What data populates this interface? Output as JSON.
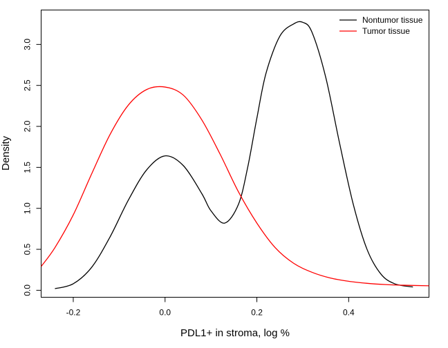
{
  "chart_data": {
    "type": "line",
    "title": "",
    "xlabel": "PDL1+ in stroma, log %",
    "ylabel": "Density",
    "xlim": [
      -0.27,
      0.575
    ],
    "ylim": [
      -0.085,
      3.42
    ],
    "x_ticks": [
      -0.2,
      0.0,
      0.2,
      0.4
    ],
    "x_tick_labels": [
      "-0.2",
      "0.0",
      "0.2",
      "0.4"
    ],
    "y_ticks": [
      0.0,
      0.5,
      1.0,
      1.5,
      2.0,
      2.5,
      3.0
    ],
    "y_tick_labels": [
      "0.0",
      "0.5",
      "1.0",
      "1.5",
      "2.0",
      "2.5",
      "3.0"
    ],
    "grid": false,
    "legend_position": "top-right",
    "series": [
      {
        "name": "Nontumor tissue",
        "color": "#000000",
        "x": [
          -0.24,
          -0.2,
          -0.16,
          -0.12,
          -0.08,
          -0.04,
          0.0,
          0.04,
          0.08,
          0.1,
          0.13,
          0.16,
          0.18,
          0.2,
          0.22,
          0.25,
          0.28,
          0.3,
          0.32,
          0.35,
          0.38,
          0.41,
          0.44,
          0.47,
          0.5,
          0.54
        ],
        "y": [
          0.02,
          0.08,
          0.28,
          0.65,
          1.1,
          1.47,
          1.64,
          1.52,
          1.18,
          0.97,
          0.82,
          1.05,
          1.5,
          2.1,
          2.65,
          3.1,
          3.25,
          3.27,
          3.15,
          2.6,
          1.8,
          1.05,
          0.5,
          0.2,
          0.08,
          0.04
        ]
      },
      {
        "name": "Tumor tissue",
        "color": "#ff0000",
        "x": [
          -0.27,
          -0.24,
          -0.2,
          -0.16,
          -0.12,
          -0.08,
          -0.04,
          0.0,
          0.04,
          0.08,
          0.12,
          0.16,
          0.2,
          0.24,
          0.28,
          0.32,
          0.36,
          0.4,
          0.44,
          0.48,
          0.52,
          0.575
        ],
        "y": [
          0.29,
          0.52,
          0.92,
          1.42,
          1.9,
          2.26,
          2.45,
          2.48,
          2.38,
          2.08,
          1.66,
          1.2,
          0.82,
          0.52,
          0.33,
          0.22,
          0.15,
          0.11,
          0.085,
          0.07,
          0.062,
          0.055
        ]
      }
    ]
  }
}
